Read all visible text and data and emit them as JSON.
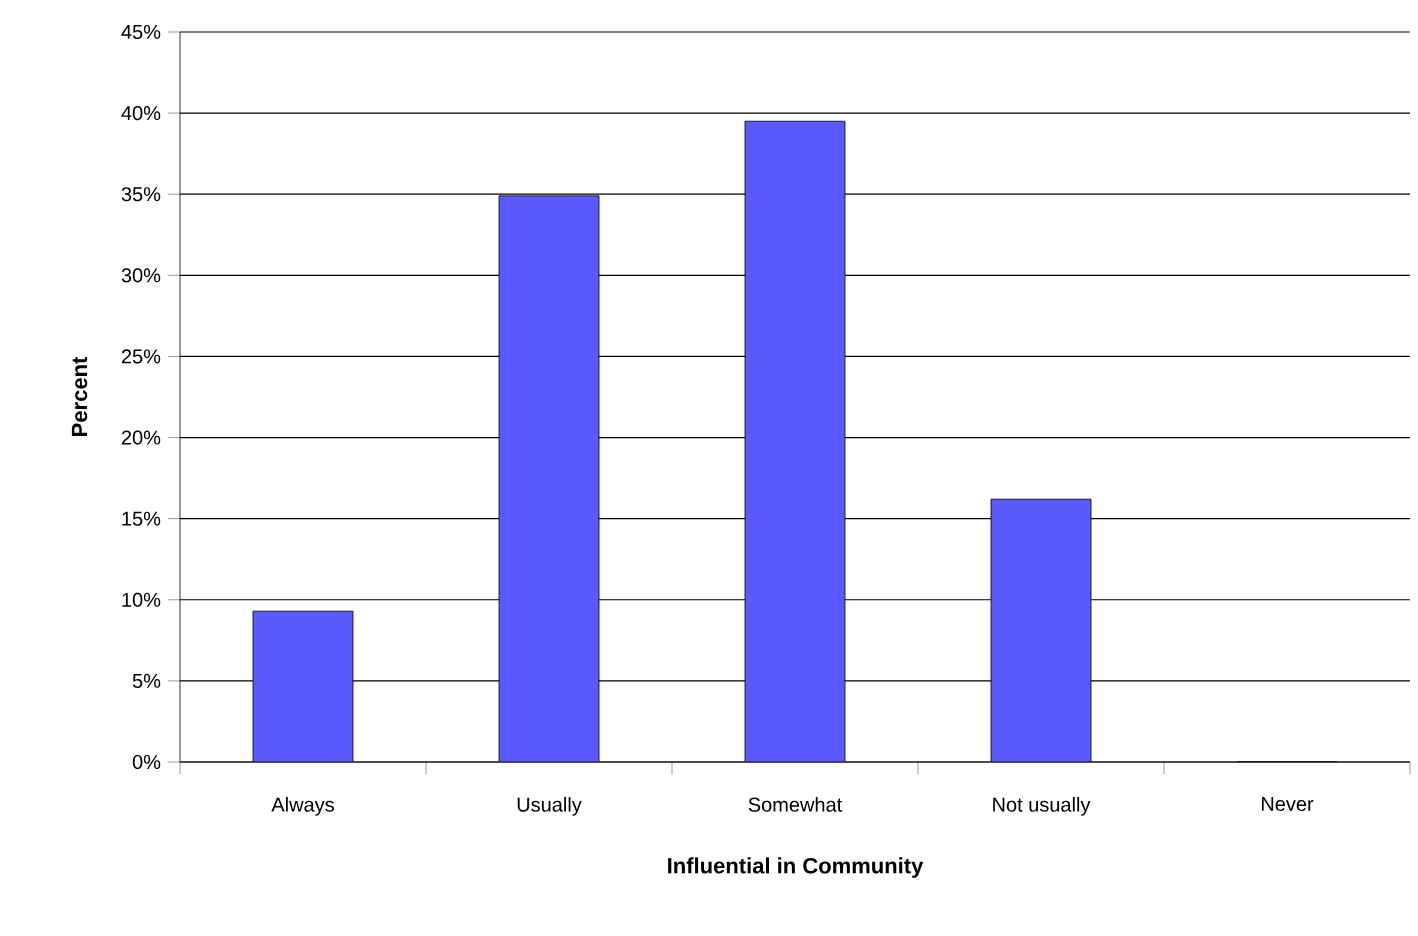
{
  "chart_data": {
    "type": "bar",
    "xlabel": "Influential in Community",
    "ylabel": "Percent",
    "categories": [
      "Always",
      "Usually",
      "Somewhat",
      "Not usually",
      "Never"
    ],
    "values": [
      9.3,
      34.9,
      39.5,
      16.2,
      0
    ],
    "color": "#5a5aff",
    "ylim": [
      0,
      45
    ],
    "yticks": [
      {
        "value": 0,
        "label": "0%"
      },
      {
        "value": 5,
        "label": "5%"
      },
      {
        "value": 10,
        "label": "10%"
      },
      {
        "value": 15,
        "label": "15%"
      },
      {
        "value": 20,
        "label": "20%"
      },
      {
        "value": 25,
        "label": "25%"
      },
      {
        "value": 30,
        "label": "30%"
      },
      {
        "value": 35,
        "label": "35%"
      },
      {
        "value": 40,
        "label": "40%"
      },
      {
        "value": 45,
        "label": "45%"
      }
    ],
    "grid": "y"
  }
}
